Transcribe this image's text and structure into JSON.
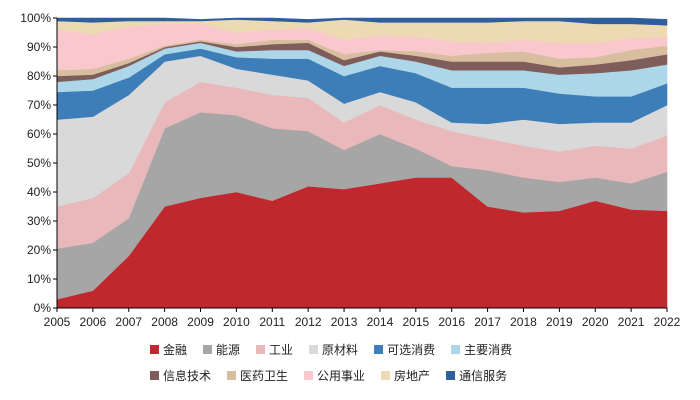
{
  "chart_data": {
    "type": "area",
    "stacked": true,
    "x": [
      "2005",
      "2006",
      "2007",
      "2008",
      "2009",
      "2010",
      "2011",
      "2012",
      "2013",
      "2014",
      "2015",
      "2016",
      "2017",
      "2018",
      "2019",
      "2020",
      "2021",
      "2022"
    ],
    "ylim": [
      0,
      100
    ],
    "yticks": [
      0,
      10,
      20,
      30,
      40,
      50,
      60,
      70,
      80,
      90,
      100
    ],
    "ytick_labels": [
      "0%",
      "10%",
      "20%",
      "30%",
      "40%",
      "50%",
      "60%",
      "70%",
      "80%",
      "90%",
      "100%"
    ],
    "grid": false,
    "legend_position": "bottom",
    "series": [
      {
        "name": "金融",
        "color": "#C0282D",
        "values": [
          3,
          6,
          18,
          35,
          38,
          40,
          37,
          42,
          41,
          43,
          45,
          45,
          35,
          33,
          33.5,
          37,
          34,
          33.5
        ]
      },
      {
        "name": "能源",
        "color": "#A6A6A6",
        "values": [
          17.5,
          16.5,
          13,
          27,
          29.5,
          26.5,
          25,
          19,
          13.5,
          17,
          10,
          4,
          12.5,
          12,
          10,
          8,
          9,
          13.5
        ]
      },
      {
        "name": "工业",
        "color": "#E9B8BA",
        "values": [
          14.5,
          15.5,
          15.5,
          9,
          10.5,
          9.5,
          11.5,
          11.5,
          9.5,
          10,
          10,
          12,
          11,
          11,
          10.5,
          11,
          12,
          12.5
        ]
      },
      {
        "name": "原材料",
        "color": "#D9D9D9",
        "values": [
          30,
          28,
          27,
          14,
          9,
          6.5,
          7,
          6,
          6.5,
          4.5,
          6,
          3,
          5,
          9,
          9.5,
          8,
          9,
          10.5
        ]
      },
      {
        "name": "可选消费",
        "color": "#3D7DB8",
        "values": [
          9.5,
          9,
          6,
          2.5,
          2.5,
          4,
          5.5,
          7.5,
          9.5,
          9,
          10,
          12,
          12.5,
          11,
          10.5,
          9,
          9,
          7.5
        ]
      },
      {
        "name": "主要消费",
        "color": "#ADD7E8",
        "values": [
          3.5,
          4,
          4,
          2,
          2,
          2,
          3,
          3,
          3.5,
          3.5,
          4,
          6,
          6,
          6,
          6.5,
          8,
          9,
          6.5
        ]
      },
      {
        "name": "信息技术",
        "color": "#7F5D5B",
        "values": [
          2,
          1.5,
          1,
          0.5,
          0.5,
          1.5,
          2,
          2.5,
          2,
          1.5,
          2,
          3,
          3,
          3,
          2.5,
          3,
          3.5,
          3.5
        ]
      },
      {
        "name": "医药卫生",
        "color": "#D6BE9E",
        "values": [
          2,
          2,
          1.5,
          0.5,
          0.5,
          1,
          1.5,
          1,
          2,
          0.5,
          1.5,
          2,
          3,
          3.5,
          3,
          2.5,
          3.5,
          3
        ]
      },
      {
        "name": "公用事业",
        "color": "#F8C8CC",
        "values": [
          14,
          12,
          11,
          7.5,
          5.5,
          4,
          3.5,
          4,
          5,
          5,
          5,
          5,
          3.5,
          4,
          5.5,
          5,
          4,
          3
        ]
      },
      {
        "name": "房地产",
        "color": "#EDD9B2",
        "values": [
          3,
          4,
          2,
          1,
          1,
          4.5,
          3,
          2,
          7,
          4.5,
          5,
          6.5,
          7,
          6.5,
          7.5,
          6.5,
          5,
          4
        ]
      },
      {
        "name": "通信服务",
        "color": "#2E5F9C",
        "values": [
          1,
          1.5,
          1,
          1,
          0.5,
          0.5,
          1,
          1,
          0.5,
          1.5,
          1.5,
          1.5,
          1.5,
          1,
          1,
          2,
          2,
          2
        ]
      }
    ]
  }
}
